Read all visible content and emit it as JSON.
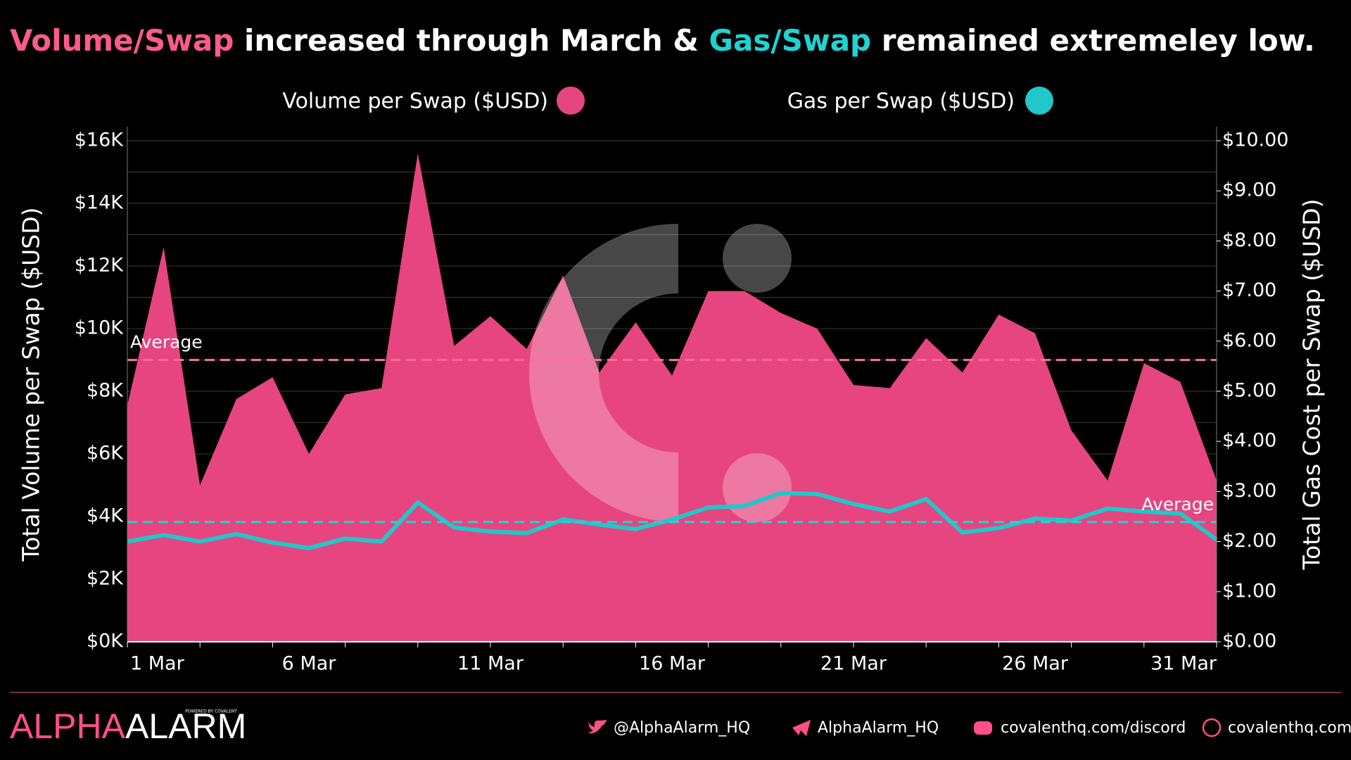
{
  "chart_data": {
    "type": "area-line",
    "title": [
      {
        "text": "Volume/Swap",
        "color": "#ff5a8c"
      },
      {
        "text": "increased through March &"
      },
      {
        "text": "Gas/Swap",
        "color": "#20d3d3"
      },
      {
        "text": "remained extremeley low."
      }
    ],
    "x": [
      "1 Mar",
      null,
      null,
      null,
      null,
      "6 Mar",
      null,
      null,
      null,
      null,
      "11 Mar",
      null,
      null,
      null,
      null,
      "16 Mar",
      null,
      null,
      null,
      null,
      "21 Mar",
      null,
      null,
      null,
      null,
      "26 Mar",
      null,
      null,
      null,
      null,
      "31 Mar"
    ],
    "y_label": "Total Volume per Swap ($USD)",
    "y2_label": "Total Gas Cost per Swap ($USD)",
    "ylim": [
      0,
      16000
    ],
    "yticks": [
      {
        "value": 0,
        "label": "$0K"
      },
      {
        "value": 2000,
        "label": "$2K"
      },
      {
        "value": 4000,
        "label": "$4K"
      },
      {
        "value": 6000,
        "label": "$6K"
      },
      {
        "value": 8000,
        "label": "$8K"
      },
      {
        "value": 10000,
        "label": "$10K"
      },
      {
        "value": 12000,
        "label": "$12K"
      },
      {
        "value": 14000,
        "label": "$14K"
      },
      {
        "value": 16000,
        "label": "$16K"
      }
    ],
    "minor_yticks": [
      1000,
      3000,
      5000,
      7000,
      9000,
      11000,
      13000,
      15000
    ],
    "y2lim": [
      0,
      10
    ],
    "y2ticks": [
      {
        "value": 0,
        "label": "$0.00"
      },
      {
        "value": 1,
        "label": "$1.00"
      },
      {
        "value": 2,
        "label": "$2.00"
      },
      {
        "value": 3,
        "label": "$3.00"
      },
      {
        "value": 4,
        "label": "$4.00"
      },
      {
        "value": 5,
        "label": "$5.00"
      },
      {
        "value": 6,
        "label": "$6.00"
      },
      {
        "value": 7,
        "label": "$7.00"
      },
      {
        "value": 8,
        "label": "$8.00"
      },
      {
        "value": 9,
        "label": "$9.00"
      },
      {
        "value": 10,
        "label": "$10.00"
      }
    ],
    "grid": true,
    "series": [
      {
        "name": "Volume per Swap ($USD)",
        "color": "#e6457f",
        "kind": "area",
        "values": [
          7550,
          12600,
          5000,
          7750,
          8450,
          6000,
          7900,
          8100,
          15600,
          9450,
          10400,
          9350,
          11700,
          8600,
          10200,
          8500,
          11200,
          11200,
          10500,
          10000,
          8200,
          8100,
          9700,
          8600,
          10450,
          9850,
          6750,
          5150,
          8900,
          8300,
          5150
        ],
        "average": 9000,
        "average_label": "Average"
      },
      {
        "name": "Gas per Swap ($USD)",
        "color": "#21c7c9",
        "kind": "line",
        "axis": "y2",
        "values": [
          2.0,
          2.13,
          2.0,
          2.15,
          1.98,
          1.87,
          2.06,
          2.0,
          2.78,
          2.28,
          2.2,
          2.17,
          2.44,
          2.34,
          2.25,
          2.44,
          2.68,
          2.71,
          2.97,
          2.95,
          2.75,
          2.6,
          2.85,
          2.18,
          2.27,
          2.46,
          2.42,
          2.66,
          2.6,
          2.56,
          2.04
        ],
        "average": 2.39,
        "average_label": "Average"
      }
    ]
  },
  "footer": {
    "brand": [
      "ALPHA",
      "ALARM"
    ],
    "tagline": "POWERED BY COVALENT",
    "links": [
      "@AlphaAlarm_HQ",
      "AlphaAlarm_HQ",
      "covalenthq.com/discord",
      "covalenthq.com"
    ]
  }
}
